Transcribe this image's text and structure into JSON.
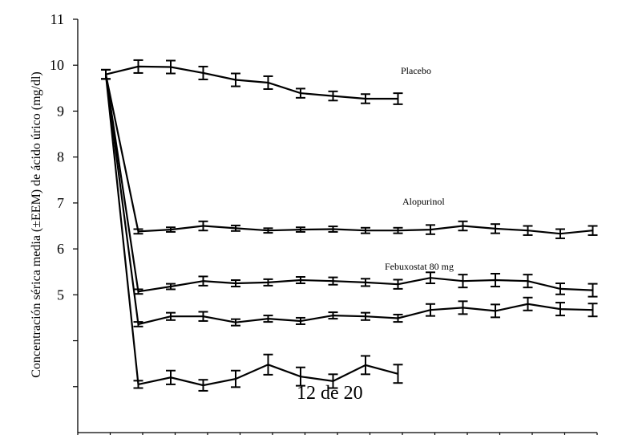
{
  "page_note": "12 de 20",
  "chart_data": {
    "type": "line",
    "title": "",
    "ylabel": "Concentración sérica media (±EEM) de ácido úrico (mg/dl)",
    "xlabel": "",
    "ylim": [
      2,
      11
    ],
    "yticks": [
      2,
      3,
      4,
      5,
      6,
      7,
      8,
      9,
      10,
      11
    ],
    "ytick_labels": [
      "",
      "",
      "",
      "5",
      "6",
      "7",
      "8",
      "9",
      "10",
      "11"
    ],
    "x_count": 16,
    "grid": false,
    "line_color": "#000000",
    "series": [
      {
        "name": "Placebo",
        "x": [
          0,
          1,
          2,
          3,
          4,
          5,
          6,
          7,
          8,
          9
        ],
        "values": [
          9.8,
          9.97,
          9.96,
          9.83,
          9.68,
          9.62,
          9.39,
          9.33,
          9.27,
          9.27
        ],
        "errors": [
          0.1,
          0.14,
          0.14,
          0.14,
          0.14,
          0.14,
          0.1,
          0.1,
          0.1,
          0.12
        ]
      },
      {
        "name": "Alopurinol",
        "x": [
          0,
          1,
          2,
          3,
          4,
          5,
          6,
          7,
          8,
          9,
          10,
          11,
          12,
          13,
          14,
          15
        ],
        "values": [
          9.8,
          6.38,
          6.42,
          6.5,
          6.45,
          6.4,
          6.42,
          6.43,
          6.4,
          6.4,
          6.42,
          6.5,
          6.44,
          6.4,
          6.33,
          6.4
        ],
        "errors": [
          0.1,
          0.05,
          0.05,
          0.1,
          0.06,
          0.05,
          0.05,
          0.06,
          0.06,
          0.06,
          0.1,
          0.1,
          0.1,
          0.1,
          0.1,
          0.1
        ]
      },
      {
        "name": "Febuxostat 80 mg",
        "x": [
          0,
          1,
          2,
          3,
          4,
          5,
          6,
          7,
          8,
          9,
          10,
          11,
          12,
          13,
          14,
          15
        ],
        "values": [
          9.8,
          5.07,
          5.18,
          5.3,
          5.25,
          5.27,
          5.32,
          5.3,
          5.27,
          5.23,
          5.37,
          5.3,
          5.32,
          5.3,
          5.13,
          5.1
        ],
        "errors": [
          0.1,
          0.05,
          0.06,
          0.1,
          0.07,
          0.07,
          0.07,
          0.08,
          0.08,
          0.1,
          0.12,
          0.14,
          0.14,
          0.14,
          0.12,
          0.14
        ]
      },
      {
        "name": "",
        "x": [
          0,
          1,
          2,
          3,
          4,
          5,
          6,
          7,
          8,
          9,
          10,
          11,
          12,
          13,
          14,
          15
        ],
        "values": [
          9.8,
          4.36,
          4.53,
          4.53,
          4.4,
          4.48,
          4.43,
          4.55,
          4.53,
          4.49,
          4.67,
          4.72,
          4.65,
          4.8,
          4.69,
          4.67
        ],
        "errors": [
          0.1,
          0.05,
          0.08,
          0.1,
          0.07,
          0.07,
          0.07,
          0.07,
          0.08,
          0.08,
          0.13,
          0.14,
          0.14,
          0.14,
          0.14,
          0.14
        ]
      },
      {
        "name": "",
        "x": [
          0,
          1,
          2,
          3,
          4,
          5,
          6,
          7,
          8,
          9
        ],
        "values": [
          9.8,
          3.05,
          3.2,
          3.03,
          3.17,
          3.48,
          3.22,
          3.12,
          3.47,
          3.28
        ],
        "errors": [
          0.1,
          0.08,
          0.15,
          0.12,
          0.18,
          0.22,
          0.2,
          0.15,
          0.2,
          0.2
        ]
      }
    ]
  }
}
